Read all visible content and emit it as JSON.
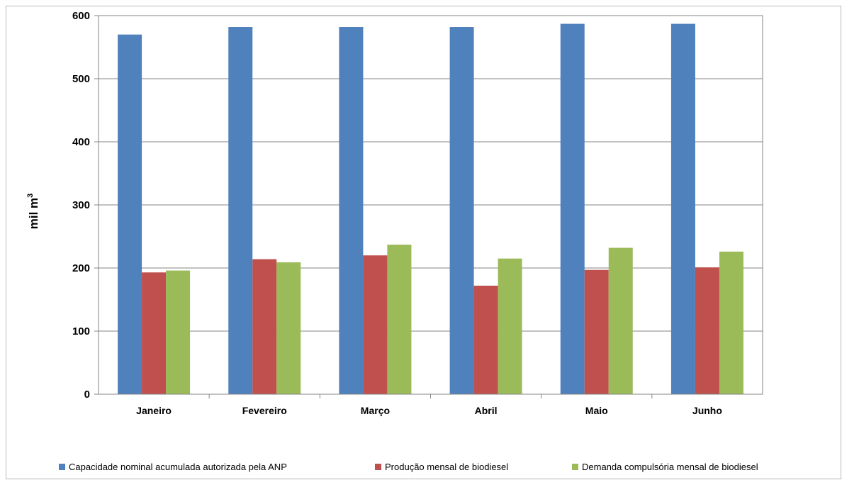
{
  "chart_data": {
    "type": "bar",
    "title": "",
    "xlabel": "",
    "ylabel": "mil m",
    "ylabel_superscript": "3",
    "ylim": [
      0,
      600
    ],
    "yticks": [
      0,
      100,
      200,
      300,
      400,
      500,
      600
    ],
    "grid": true,
    "legend_position": "bottom",
    "categories": [
      "Janeiro",
      "Fevereiro",
      "Março",
      "Abril",
      "Maio",
      "Junho"
    ],
    "series": [
      {
        "name": "Capacidade nominal acumulada autorizada pela ANP",
        "color": "#4f81bd",
        "values": [
          570,
          582,
          582,
          582,
          587,
          587
        ]
      },
      {
        "name": "Produção mensal de biodiesel",
        "color": "#c0504d",
        "values": [
          193,
          214,
          220,
          172,
          197,
          201
        ]
      },
      {
        "name": "Demanda compulsória mensal de biodiesel",
        "color": "#9bbb59",
        "values": [
          196,
          209,
          237,
          215,
          232,
          226
        ]
      }
    ]
  }
}
